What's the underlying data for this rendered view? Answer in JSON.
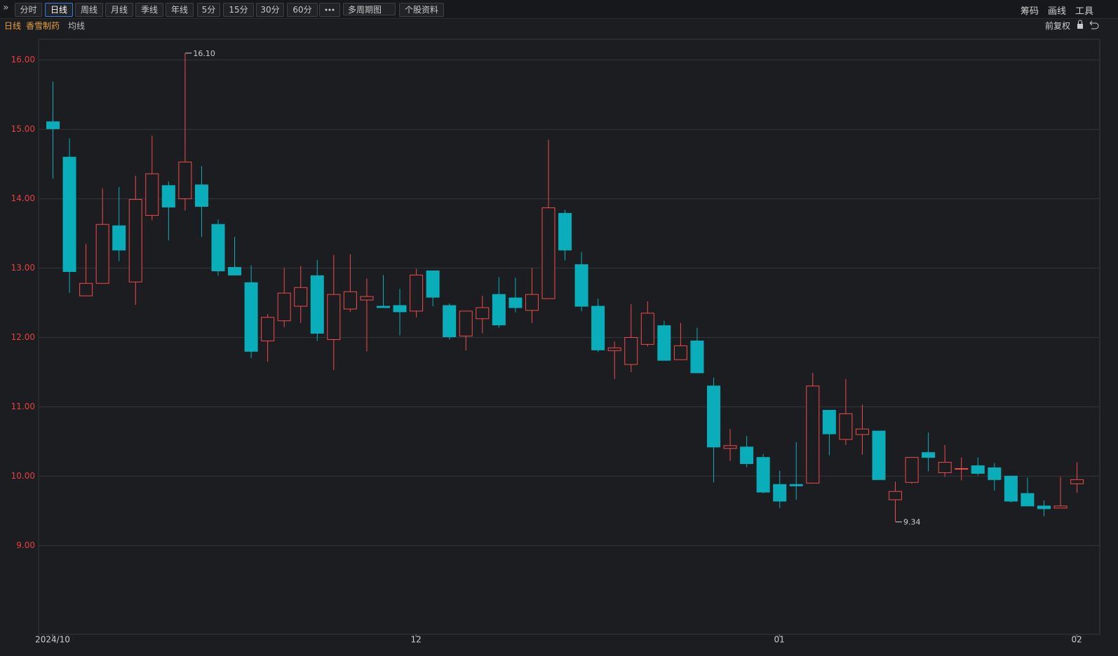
{
  "toolbar": {
    "periods": [
      "分时",
      "日线",
      "周线",
      "月线",
      "季线",
      "年线",
      "5分",
      "15分",
      "30分",
      "60分"
    ],
    "multi": "多周期图",
    "info": "个股资料",
    "right": [
      "筹码",
      "画线",
      "工具"
    ]
  },
  "subbar": {
    "period": "日线",
    "stock": "香雪制药",
    "indicator": "均线",
    "adjust": "前复权"
  },
  "chart_data": {
    "type": "candlestick",
    "categories": [
      "2024/10",
      null,
      null,
      null,
      null,
      null,
      null,
      null,
      null,
      null,
      null,
      null,
      null,
      null,
      null,
      null,
      null,
      null,
      null,
      null,
      null,
      null,
      "12",
      null,
      null,
      null,
      null,
      null,
      null,
      null,
      null,
      null,
      null,
      null,
      null,
      null,
      null,
      null,
      null,
      null,
      null,
      null,
      null,
      null,
      "01",
      null,
      null,
      null,
      null,
      null,
      null,
      null,
      null,
      null,
      null,
      null,
      null,
      null,
      null,
      null,
      null,
      null,
      "02"
    ],
    "open": [
      15.11,
      14.6,
      12.6,
      12.78,
      13.61,
      12.8,
      13.76,
      14.19,
      14.0,
      14.2,
      13.63,
      13.01,
      12.79,
      11.95,
      12.24,
      12.45,
      12.89,
      11.97,
      12.41,
      12.54,
      12.45,
      12.46,
      12.38,
      12.96,
      12.46,
      12.02,
      12.27,
      12.62,
      12.57,
      12.39,
      12.56,
      13.79,
      13.05,
      12.45,
      11.81,
      11.61,
      11.9,
      12.17,
      11.68,
      11.95,
      11.3,
      10.4,
      10.42,
      10.27,
      9.88,
      9.88,
      9.9,
      10.95,
      10.53,
      10.6,
      10.65,
      9.66,
      9.91,
      10.34,
      10.05,
      10.1,
      10.15,
      10.12,
      10.0,
      9.75,
      9.57,
      9.54,
      9.89
    ],
    "high": [
      15.69,
      14.87,
      13.35,
      14.15,
      14.17,
      14.33,
      14.91,
      14.25,
      16.1,
      14.47,
      13.7,
      13.45,
      13.04,
      12.34,
      13.0,
      13.03,
      13.12,
      13.19,
      13.2,
      12.85,
      12.9,
      12.7,
      12.99,
      12.96,
      12.49,
      12.38,
      12.6,
      12.87,
      12.86,
      13.0,
      14.85,
      13.84,
      13.23,
      12.56,
      11.94,
      12.48,
      12.52,
      12.24,
      12.21,
      12.14,
      11.42,
      10.68,
      10.58,
      10.32,
      10.08,
      10.49,
      11.49,
      10.95,
      11.4,
      11.03,
      10.65,
      9.92,
      10.27,
      10.63,
      10.45,
      10.27,
      10.27,
      10.19,
      10.0,
      9.98,
      9.65,
      9.99,
      10.2
    ],
    "low": [
      14.29,
      12.64,
      12.6,
      12.78,
      13.1,
      12.47,
      13.69,
      13.4,
      13.83,
      13.45,
      12.89,
      12.9,
      11.7,
      11.65,
      12.15,
      12.21,
      11.95,
      11.53,
      12.37,
      11.8,
      12.43,
      12.03,
      12.29,
      12.45,
      11.97,
      11.81,
      12.06,
      12.14,
      12.36,
      12.21,
      12.56,
      13.11,
      12.38,
      11.79,
      11.4,
      11.5,
      11.87,
      11.67,
      11.68,
      11.49,
      9.91,
      10.22,
      10.13,
      9.75,
      9.54,
      9.66,
      9.9,
      10.3,
      10.45,
      10.31,
      9.95,
      9.34,
      9.89,
      10.07,
      9.99,
      9.94,
      10.01,
      9.79,
      9.62,
      9.57,
      9.42,
      9.54,
      9.76
    ],
    "close": [
      15.01,
      12.95,
      12.78,
      13.63,
      13.26,
      13.99,
      14.36,
      13.88,
      14.53,
      13.89,
      12.96,
      12.9,
      11.8,
      12.29,
      12.64,
      12.72,
      12.06,
      12.62,
      12.66,
      12.59,
      12.43,
      12.37,
      12.9,
      12.58,
      12.01,
      12.38,
      12.43,
      12.18,
      12.43,
      12.62,
      13.87,
      13.26,
      12.45,
      11.82,
      11.85,
      12.0,
      12.35,
      11.67,
      11.88,
      11.49,
      10.42,
      10.44,
      10.18,
      9.77,
      9.64,
      9.86,
      11.3,
      10.61,
      10.9,
      10.68,
      9.95,
      9.78,
      10.27,
      10.27,
      10.2,
      10.11,
      10.04,
      9.95,
      9.64,
      9.57,
      9.53,
      9.57,
      9.95
    ],
    "up_color": "#f04a4a",
    "down_color": "#0aaebb",
    "ylim": [
      7.72,
      16.3
    ],
    "yticks": [
      {
        "value": 9,
        "label": "9.00"
      },
      {
        "value": 10,
        "label": "10.00"
      },
      {
        "value": 11,
        "label": "11.00"
      },
      {
        "value": 12,
        "label": "12.00"
      },
      {
        "value": 13,
        "label": "13.00"
      },
      {
        "value": 14,
        "label": "14.00"
      },
      {
        "value": 15,
        "label": "15.00"
      },
      {
        "value": 16,
        "label": "16.00"
      }
    ],
    "grid": true,
    "annotations": [
      {
        "value": 16.1,
        "label": "16.10"
      },
      {
        "value": 9.34,
        "label": "9.34"
      }
    ]
  }
}
